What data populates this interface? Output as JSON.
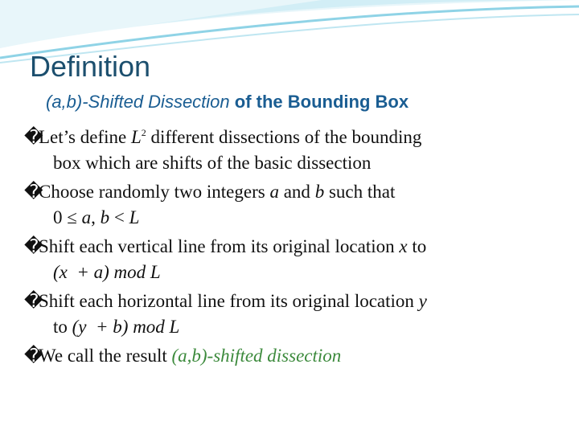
{
  "header": {
    "title": "Definition",
    "subtitle": [
      {
        "text": "(a,b)-Shifted Dissection",
        "italic": true
      },
      {
        "text": " of the Bounding Box"
      }
    ]
  },
  "bullets": [
    {
      "marker": "�",
      "lines": [
        [
          {
            "text": "Let’s define "
          },
          {
            "text": "L",
            "italic": true
          },
          {
            "text": "2",
            "sup": true
          },
          {
            "text": " different dissections of the bounding"
          }
        ],
        [
          {
            "text": "box which are shifts of the basic dissection"
          }
        ]
      ]
    },
    {
      "marker": "�",
      "lines": [
        [
          {
            "text": "Choose randomly two integers "
          },
          {
            "text": "a",
            "italic": true
          },
          {
            "text": " and "
          },
          {
            "text": "b",
            "italic": true
          },
          {
            "text": " such that"
          }
        ],
        [
          {
            "text": "0 ≤ "
          },
          {
            "text": "a",
            "italic": true
          },
          {
            "text": ", "
          },
          {
            "text": "b",
            "italic": true
          },
          {
            "text": " < "
          },
          {
            "text": "L",
            "italic": true
          }
        ]
      ]
    },
    {
      "marker": "�",
      "lines": [
        [
          {
            "text": "Shift each vertical line from its original location "
          },
          {
            "text": "x",
            "italic": true
          },
          {
            "text": " to"
          }
        ],
        [
          {
            "text": "(x  + a) mod L",
            "italic": true
          }
        ]
      ]
    },
    {
      "marker": "�",
      "lines": [
        [
          {
            "text": "Shift each horizontal line from its original location "
          },
          {
            "text": "y",
            "italic": true
          }
        ],
        [
          {
            "text": "to "
          },
          {
            "text": "(y  + b) mod L",
            "italic": true
          }
        ]
      ]
    },
    {
      "marker": "� ",
      "lines": [
        [
          {
            "text": "We call the result "
          },
          {
            "text": "(a,b)-shifted dissection",
            "italic": true,
            "color": "#3c8a3c"
          }
        ]
      ]
    }
  ]
}
